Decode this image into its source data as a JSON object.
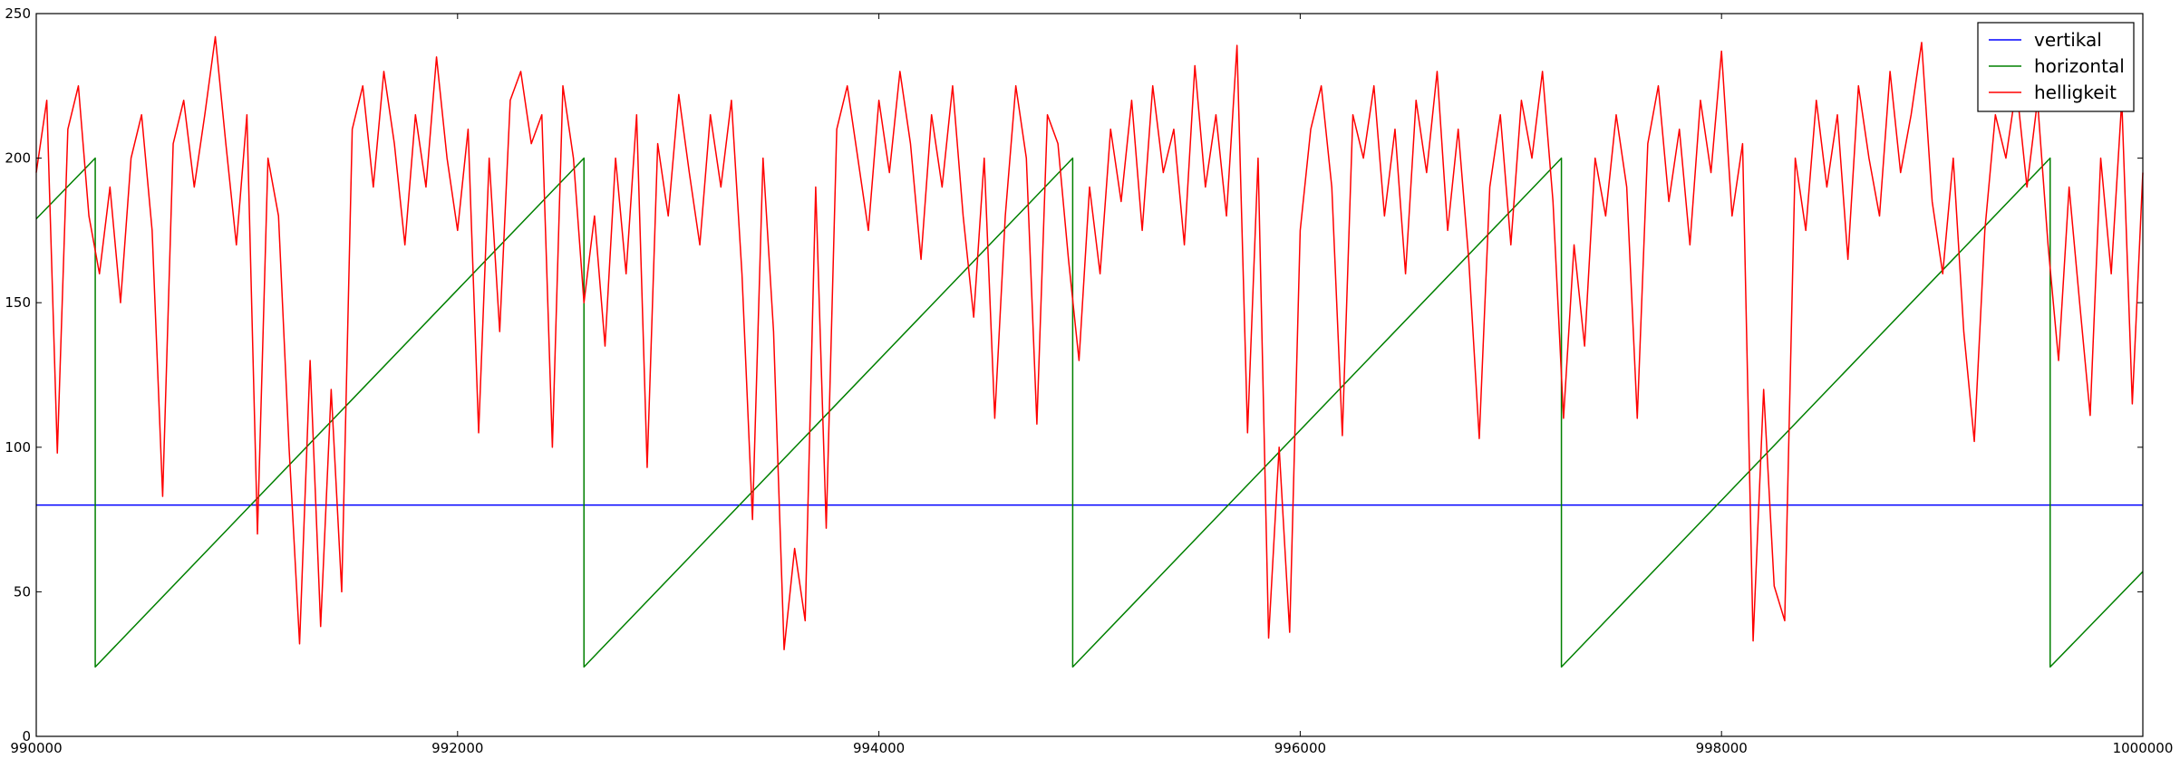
{
  "chart_data": {
    "type": "line",
    "xlim": [
      990000,
      1000000
    ],
    "xticks": [
      990000,
      992000,
      994000,
      996000,
      998000,
      1000000
    ],
    "ylim": [
      0,
      250
    ],
    "yticks": [
      0,
      50,
      100,
      150,
      200,
      250
    ],
    "grid": false,
    "legend": "upper right",
    "series": [
      {
        "name": "vertikal",
        "color": "#0000ff",
        "x": [
          990000,
          1000000
        ],
        "values": [
          80,
          80
        ]
      },
      {
        "name": "horizontal",
        "color": "#008000",
        "x": [
          990000,
          990280,
          990280,
          992600,
          992600,
          994920,
          994920,
          997240,
          997240,
          999560,
          999560,
          1000000
        ],
        "values": [
          179,
          200,
          24,
          200,
          24,
          200,
          24,
          200,
          24,
          200,
          24,
          57
        ]
      },
      {
        "name": "helligkeit",
        "color": "#ff0000",
        "x": [
          990000,
          990050,
          990100,
          990150,
          990200,
          990250,
          990300,
          990350,
          990400,
          990450,
          990500,
          990550,
          990600,
          990650,
          990700,
          990750,
          990800,
          990850,
          990900,
          990950,
          991000,
          991050,
          991100,
          991150,
          991200,
          991250,
          991300,
          991350,
          991400,
          991450,
          991500,
          991550,
          991600,
          991650,
          991700,
          991750,
          991800,
          991850,
          991900,
          991950,
          992000,
          992050,
          992100,
          992150,
          992200,
          992250,
          992300,
          992350,
          992400,
          992450,
          992500,
          992550,
          992600,
          992650,
          992700,
          992750,
          992800,
          992850,
          992900,
          992950,
          993000,
          993050,
          993100,
          993150,
          993200,
          993250,
          993300,
          993350,
          993400,
          993450,
          993500,
          993550,
          993600,
          993650,
          993700,
          993750,
          993800,
          993850,
          993900,
          993950,
          994000,
          994050,
          994100,
          994150,
          994200,
          994250,
          994300,
          994350,
          994400,
          994450,
          994500,
          994550,
          994600,
          994650,
          994700,
          994750,
          994800,
          994850,
          994900,
          994950,
          995000,
          995050,
          995100,
          995150,
          995200,
          995250,
          995300,
          995350,
          995400,
          995450,
          995500,
          995550,
          995600,
          995650,
          995700,
          995750,
          995800,
          995850,
          995900,
          995950,
          996000,
          996050,
          996100,
          996150,
          996200,
          996250,
          996300,
          996350,
          996400,
          996450,
          996500,
          996550,
          996600,
          996650,
          996700,
          996750,
          996800,
          996850,
          996900,
          996950,
          997000,
          997050,
          997100,
          997150,
          997200,
          997250,
          997300,
          997350,
          997400,
          997450,
          997500,
          997550,
          997600,
          997650,
          997700,
          997750,
          997800,
          997850,
          997900,
          997950,
          998000,
          998050,
          998100,
          998150,
          998200,
          998250,
          998300,
          998350,
          998400,
          998450,
          998500,
          998550,
          998600,
          998650,
          998700,
          998750,
          998800,
          998850,
          998900,
          998950,
          999000,
          999050,
          999100,
          999150,
          999200,
          999250,
          999300,
          999350,
          999400,
          999450,
          999500,
          999550,
          999600,
          999650,
          999700,
          999750,
          999800,
          999850,
          999900,
          999950,
          1000000
        ],
        "values": [
          195,
          220,
          98,
          210,
          225,
          180,
          160,
          190,
          150,
          200,
          215,
          175,
          83,
          205,
          220,
          190,
          215,
          242,
          205,
          170,
          215,
          70,
          200,
          180,
          100,
          32,
          130,
          38,
          120,
          50,
          210,
          225,
          190,
          230,
          205,
          170,
          215,
          190,
          235,
          200,
          175,
          210,
          105,
          200,
          140,
          220,
          230,
          205,
          215,
          100,
          225,
          200,
          150,
          180,
          135,
          200,
          160,
          215,
          93,
          205,
          180,
          222,
          195,
          170,
          215,
          190,
          220,
          160,
          75,
          200,
          140,
          30,
          65,
          40,
          190,
          72,
          210,
          225,
          200,
          175,
          220,
          195,
          230,
          205,
          165,
          215,
          190,
          225,
          180,
          145,
          200,
          110,
          180,
          225,
          200,
          108,
          215,
          205,
          165,
          130,
          190,
          160,
          210,
          185,
          220,
          175,
          225,
          195,
          210,
          170,
          232,
          190,
          215,
          180,
          239,
          105,
          200,
          34,
          100,
          36,
          175,
          210,
          225,
          190,
          104,
          215,
          200,
          225,
          180,
          210,
          160,
          220,
          195,
          230,
          175,
          210,
          165,
          103,
          190,
          215,
          170,
          220,
          200,
          230,
          185,
          110,
          170,
          135,
          200,
          180,
          215,
          190,
          110,
          205,
          225,
          185,
          210,
          170,
          220,
          195,
          237,
          180,
          205,
          33,
          120,
          52,
          40,
          200,
          175,
          220,
          190,
          215,
          165,
          225,
          200,
          180,
          230,
          195,
          215,
          240,
          185,
          160,
          200,
          140,
          102,
          175,
          215,
          200,
          225,
          190,
          220,
          170,
          130,
          190,
          150,
          111,
          200,
          160,
          220,
          115,
          195
        ]
      }
    ]
  }
}
